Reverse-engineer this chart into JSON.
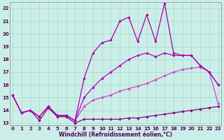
{
  "xlabel": "Windchill (Refroidissement éolien,°C)",
  "bg_color": "#cceee8",
  "grid_color": "#aaddcc",
  "xlim": [
    -0.3,
    23.3
  ],
  "ylim": [
    12.8,
    22.5
  ],
  "yticks": [
    13,
    14,
    15,
    16,
    17,
    18,
    19,
    20,
    21,
    22
  ],
  "xticks": [
    0,
    1,
    2,
    3,
    4,
    5,
    6,
    7,
    8,
    9,
    10,
    11,
    12,
    13,
    14,
    15,
    16,
    17,
    18,
    19,
    20,
    21,
    22,
    23
  ],
  "series": [
    {
      "x": [
        0,
        1,
        2,
        3,
        4,
        5,
        6,
        7,
        8,
        9,
        10,
        11,
        12,
        13,
        14,
        15,
        16,
        17,
        18,
        19,
        20,
        21,
        22,
        23
      ],
      "y": [
        15.2,
        13.8,
        14.0,
        13.2,
        14.2,
        13.5,
        13.5,
        13.0,
        13.3,
        13.3,
        13.3,
        13.3,
        13.3,
        13.4,
        13.4,
        13.5,
        13.6,
        13.7,
        13.8,
        13.9,
        14.0,
        14.1,
        14.2,
        14.3
      ],
      "color": "#880088"
    },
    {
      "x": [
        0,
        1,
        2,
        3,
        4,
        5,
        6,
        7,
        8,
        9,
        10,
        11,
        12,
        13,
        14,
        15,
        16,
        17,
        18,
        19,
        20,
        21,
        22,
        23
      ],
      "y": [
        15.2,
        13.8,
        14.0,
        13.5,
        14.3,
        13.6,
        13.6,
        13.2,
        14.3,
        14.8,
        15.0,
        15.2,
        15.5,
        15.7,
        15.9,
        16.1,
        16.4,
        16.7,
        17.0,
        17.2,
        17.3,
        17.4,
        17.0,
        14.5
      ],
      "color": "#cc44cc"
    },
    {
      "x": [
        0,
        1,
        2,
        3,
        4,
        5,
        6,
        7,
        8,
        9,
        10,
        11,
        12,
        13,
        14,
        15,
        16,
        17,
        18,
        19,
        20,
        21,
        22,
        23
      ],
      "y": [
        15.2,
        13.8,
        14.0,
        13.5,
        14.3,
        13.6,
        13.6,
        13.2,
        15.0,
        15.8,
        16.5,
        17.0,
        17.5,
        18.0,
        18.3,
        18.5,
        18.2,
        18.5,
        18.3,
        18.3,
        18.3,
        17.5,
        17.0,
        16.0
      ],
      "color": "#bb00bb"
    },
    {
      "x": [
        0,
        1,
        2,
        3,
        4,
        5,
        6,
        7,
        8,
        9,
        10,
        11,
        12,
        13,
        14,
        15,
        16,
        17,
        18,
        19,
        20,
        21,
        22,
        23
      ],
      "y": [
        15.2,
        13.8,
        14.0,
        13.5,
        14.3,
        13.6,
        13.6,
        13.2,
        16.5,
        18.5,
        19.3,
        19.5,
        21.0,
        21.3,
        19.4,
        21.5,
        19.4,
        22.4,
        18.5,
        18.3,
        18.3,
        17.5,
        17.0,
        16.0
      ],
      "color": "#aa00aa"
    }
  ]
}
